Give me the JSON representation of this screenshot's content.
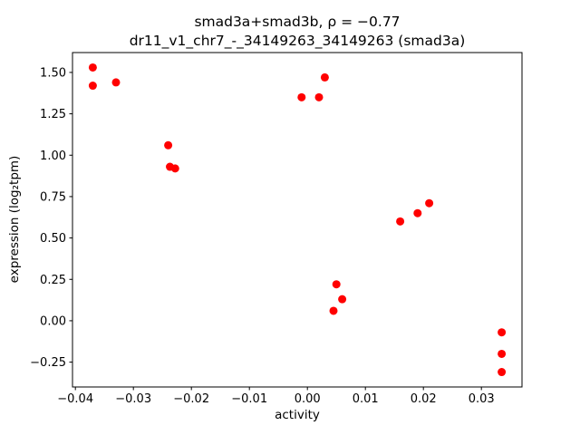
{
  "chart_data": {
    "type": "scatter",
    "title_line1": "smad3a+smad3b, ρ = −0.77",
    "title_line2": "dr11_v1_chr7_-_34149263_34149263 (smad3a)",
    "xlabel": "activity",
    "ylabel": "expression (log₂tpm)",
    "rho": -0.77,
    "marker_color": "#ff0000",
    "background_color": "#ffffff",
    "spine_color": "#000000",
    "grid": false,
    "legend": "none",
    "xlim": [
      -0.0405,
      0.037
    ],
    "ylim": [
      -0.4,
      1.62
    ],
    "xticks": [
      -0.04,
      -0.03,
      -0.02,
      -0.01,
      0.0,
      0.01,
      0.02,
      0.03
    ],
    "xtick_labels": [
      "−0.04",
      "−0.03",
      "−0.02",
      "−0.01",
      "0.00",
      "0.01",
      "0.02",
      "0.03"
    ],
    "yticks": [
      -0.25,
      0.0,
      0.25,
      0.5,
      0.75,
      1.0,
      1.25,
      1.5
    ],
    "ytick_labels": [
      "−0.25",
      "0.00",
      "0.25",
      "0.50",
      "0.75",
      "1.00",
      "1.25",
      "1.50"
    ],
    "points": [
      [
        -0.037,
        1.53
      ],
      [
        -0.037,
        1.42
      ],
      [
        -0.033,
        1.44
      ],
      [
        -0.024,
        1.06
      ],
      [
        -0.0237,
        0.93
      ],
      [
        -0.0228,
        0.92
      ],
      [
        -0.001,
        1.35
      ],
      [
        0.002,
        1.35
      ],
      [
        0.003,
        1.47
      ],
      [
        0.005,
        0.22
      ],
      [
        0.0045,
        0.06
      ],
      [
        0.006,
        0.13
      ],
      [
        0.016,
        0.6
      ],
      [
        0.019,
        0.65
      ],
      [
        0.021,
        0.71
      ],
      [
        0.0335,
        -0.07
      ],
      [
        0.0335,
        -0.2
      ],
      [
        0.0335,
        -0.31
      ]
    ]
  }
}
